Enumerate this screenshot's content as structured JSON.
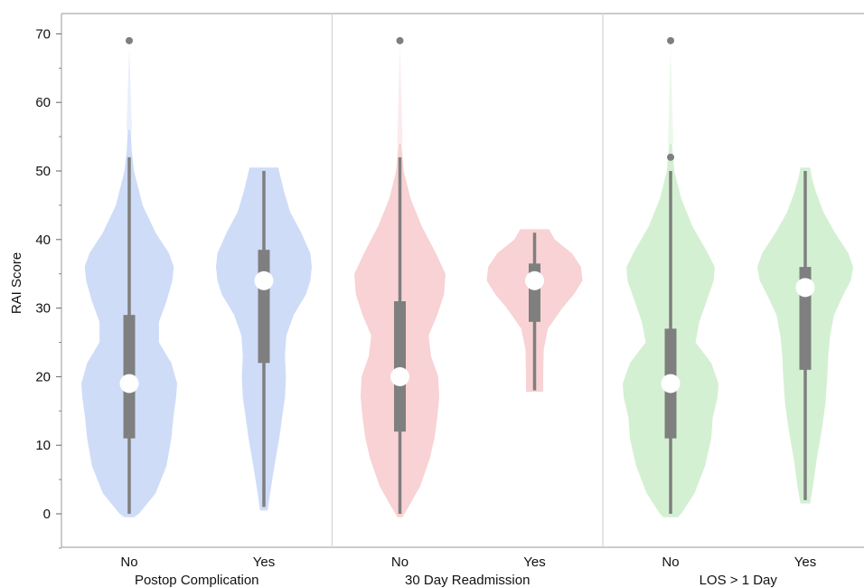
{
  "chart_data": {
    "type": "violin",
    "ylabel": "RAI Score",
    "ylim": [
      -5,
      73
    ],
    "yticks": [
      0,
      10,
      20,
      30,
      40,
      50,
      60,
      70
    ],
    "grid": false,
    "box_color": "#7f7f7f",
    "median_color": "#ffffff",
    "panels": [
      {
        "label": "Postop Complication",
        "fill": "#cfdcf8",
        "groups": [
          {
            "category": "No",
            "min": 0,
            "q1": 11,
            "median": 19,
            "q3": 29,
            "max": 52,
            "outliers": [
              69
            ],
            "density": [
              [
                -0.5,
                0.1
              ],
              [
                0,
                0.2
              ],
              [
                3,
                0.55
              ],
              [
                7,
                0.78
              ],
              [
                11,
                0.88
              ],
              [
                14,
                0.92
              ],
              [
                17,
                0.98
              ],
              [
                19,
                1.0
              ],
              [
                22,
                0.88
              ],
              [
                25,
                0.62
              ],
              [
                28,
                0.62
              ],
              [
                31,
                0.78
              ],
              [
                34,
                0.9
              ],
              [
                36,
                0.93
              ],
              [
                38,
                0.83
              ],
              [
                41,
                0.55
              ],
              [
                45,
                0.28
              ],
              [
                50,
                0.1
              ],
              [
                53,
                0.05
              ],
              [
                56,
                0.03
              ]
            ]
          },
          {
            "category": "Yes",
            "min": 1,
            "q1": 22,
            "median": 34,
            "q3": 38.5,
            "max": 50,
            "outliers": [],
            "density": [
              [
                0.5,
                0.08
              ],
              [
                3,
                0.13
              ],
              [
                7,
                0.22
              ],
              [
                11,
                0.32
              ],
              [
                14,
                0.38
              ],
              [
                17,
                0.44
              ],
              [
                20,
                0.46
              ],
              [
                23,
                0.44
              ],
              [
                26,
                0.47
              ],
              [
                29,
                0.62
              ],
              [
                32,
                0.88
              ],
              [
                34,
                0.97
              ],
              [
                36,
                1.0
              ],
              [
                38,
                0.97
              ],
              [
                41,
                0.78
              ],
              [
                44,
                0.55
              ],
              [
                47,
                0.42
              ],
              [
                49,
                0.35
              ],
              [
                50.5,
                0.3
              ]
            ]
          }
        ]
      },
      {
        "label": "30 Day Readmission",
        "fill": "#f8d2d4",
        "groups": [
          {
            "category": "No",
            "min": 0,
            "q1": 12,
            "median": 20,
            "q3": 31,
            "max": 52,
            "outliers": [
              69
            ],
            "density": [
              [
                -0.5,
                0.05
              ],
              [
                1,
                0.18
              ],
              [
                4,
                0.42
              ],
              [
                8,
                0.62
              ],
              [
                11,
                0.72
              ],
              [
                14,
                0.78
              ],
              [
                17,
                0.82
              ],
              [
                20,
                0.8
              ],
              [
                23,
                0.65
              ],
              [
                26,
                0.6
              ],
              [
                29,
                0.78
              ],
              [
                32,
                0.92
              ],
              [
                35,
                0.95
              ],
              [
                38,
                0.75
              ],
              [
                42,
                0.45
              ],
              [
                46,
                0.22
              ],
              [
                50,
                0.08
              ],
              [
                54,
                0.03
              ]
            ]
          },
          {
            "category": "Yes",
            "min": 18,
            "q1": 28,
            "median": 34,
            "q3": 36.5,
            "max": 41,
            "outliers": [],
            "density": [
              [
                17.8,
                0.18
              ],
              [
                20,
                0.18
              ],
              [
                24,
                0.19
              ],
              [
                27,
                0.28
              ],
              [
                30,
                0.58
              ],
              [
                32,
                0.82
              ],
              [
                34,
                1.0
              ],
              [
                36,
                0.97
              ],
              [
                38,
                0.78
              ],
              [
                40,
                0.42
              ],
              [
                41.5,
                0.3
              ]
            ]
          }
        ]
      },
      {
        "label": "LOS > 1 Day",
        "fill": "#d4f0d2",
        "groups": [
          {
            "category": "No",
            "min": 0,
            "q1": 11,
            "median": 19,
            "q3": 27,
            "max": 50,
            "outliers": [
              52,
              69
            ],
            "density": [
              [
                -0.5,
                0.15
              ],
              [
                0,
                0.22
              ],
              [
                3,
                0.5
              ],
              [
                7,
                0.72
              ],
              [
                11,
                0.85
              ],
              [
                14,
                0.88
              ],
              [
                17,
                0.98
              ],
              [
                19,
                1.0
              ],
              [
                22,
                0.85
              ],
              [
                25,
                0.52
              ],
              [
                28,
                0.6
              ],
              [
                31,
                0.75
              ],
              [
                34,
                0.9
              ],
              [
                36,
                0.92
              ],
              [
                38,
                0.78
              ],
              [
                42,
                0.45
              ],
              [
                46,
                0.22
              ],
              [
                50,
                0.08
              ],
              [
                54,
                0.03
              ]
            ]
          },
          {
            "category": "Yes",
            "min": 2,
            "q1": 21,
            "median": 33,
            "q3": 36,
            "max": 50,
            "outliers": [],
            "density": [
              [
                1.5,
                0.1
              ],
              [
                4,
                0.16
              ],
              [
                8,
                0.24
              ],
              [
                12,
                0.34
              ],
              [
                16,
                0.42
              ],
              [
                20,
                0.46
              ],
              [
                23,
                0.48
              ],
              [
                26,
                0.52
              ],
              [
                29,
                0.6
              ],
              [
                32,
                0.8
              ],
              [
                34,
                0.95
              ],
              [
                36,
                1.0
              ],
              [
                38,
                0.9
              ],
              [
                41,
                0.62
              ],
              [
                44,
                0.38
              ],
              [
                47,
                0.22
              ],
              [
                49,
                0.14
              ],
              [
                50.5,
                0.1
              ]
            ]
          }
        ]
      }
    ]
  }
}
